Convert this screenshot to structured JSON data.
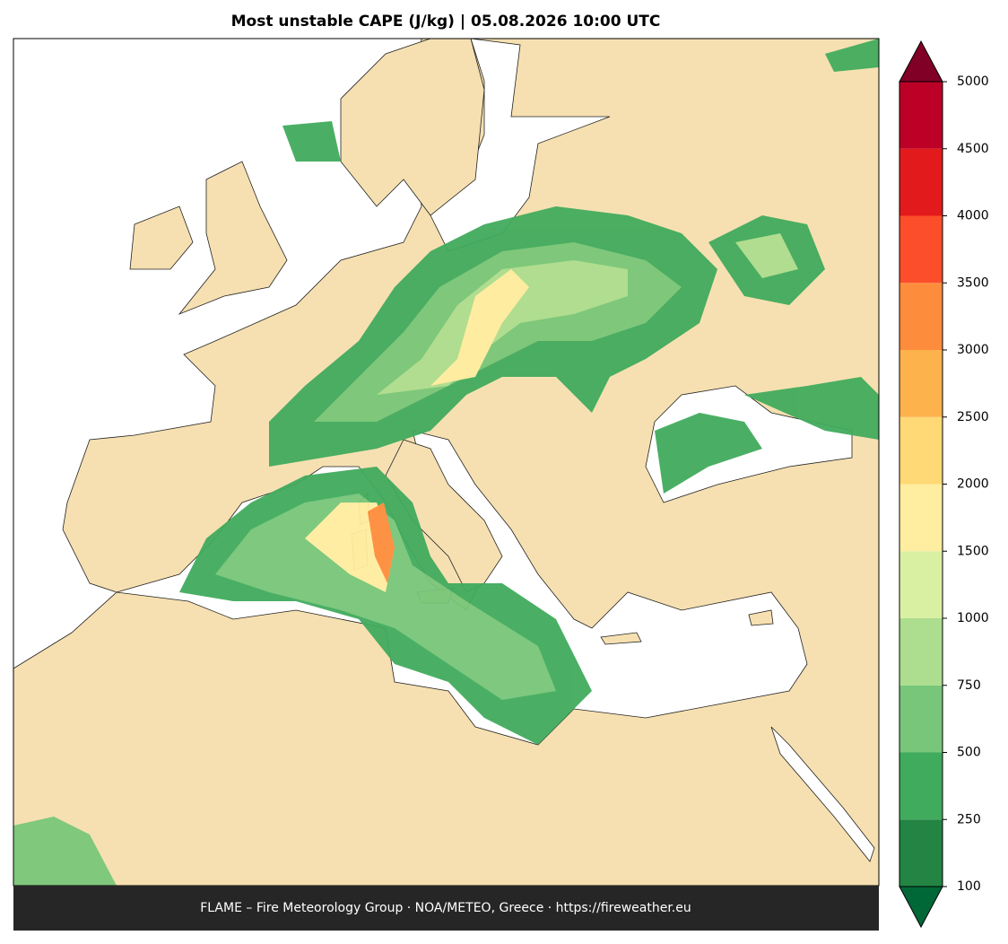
{
  "title": "Most unstable CAPE (J/kg)  |  05.08.2026 10:00 UTC",
  "footer": "FLAME – Fire Meteorology Group · NOA/METEO, Greece · https://fireweather.eu",
  "colorbar": {
    "levels": [
      100,
      250,
      500,
      750,
      1000,
      1500,
      2000,
      2500,
      3000,
      3500,
      4000,
      4500,
      5000
    ],
    "colors": [
      "#238443",
      "#41ab5d",
      "#78c679",
      "#addd8e",
      "#d9f0a3",
      "#ffeda0",
      "#fed976",
      "#feb24c",
      "#fd8d3c",
      "#fc4e2a",
      "#e31a1c",
      "#bd0026"
    ],
    "under_color": "#006837",
    "over_color": "#800026"
  }
}
